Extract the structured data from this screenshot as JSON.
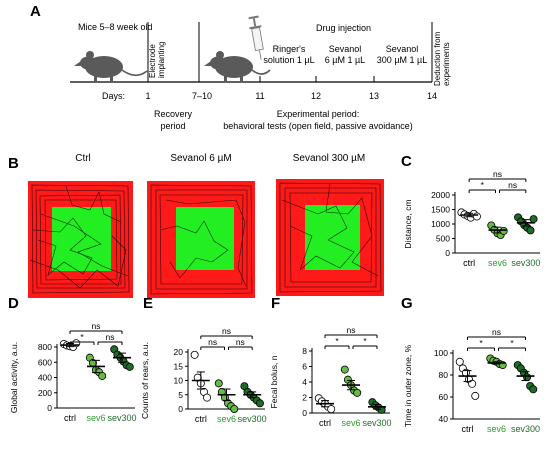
{
  "colors": {
    "ctrl": "#ffffff",
    "sev6": "#66bb44",
    "sev300": "#1f6b2a",
    "sev6_label": "#2e9a2e",
    "sev300_label": "#1f6b2a",
    "arena_outer": "#ff1a1a",
    "arena_inner": "#22ee22"
  },
  "panel_a": {
    "letter": "A",
    "mouse_age": "Mice 5–8 week old",
    "drug_injection": "Drug injection",
    "electrode_line1": "Electrode",
    "electrode_line2": "implanting",
    "deduction_line1": "Deduction from",
    "deduction_line2": "experiments",
    "ringer_line1": "Ringer's",
    "ringer_line2": "solution 1 µL",
    "sev6_line1": "Sevanol",
    "sev6_line2": "6 µM 1 µL",
    "sev300_line1": "Sevanol",
    "sev300_line2": "300 µM 1 µL",
    "days_label": "Days:",
    "days": [
      "1",
      "7–10",
      "11",
      "12",
      "13",
      "14"
    ],
    "recovery_line1": "Recovery",
    "recovery_line2": "period",
    "exp_line1": "Experimental period:",
    "exp_line2": "behavioral tests (open field, passive avoidance)",
    "icons": [
      "mouse-icon",
      "syringe-icon"
    ]
  },
  "panel_b": {
    "letter": "B",
    "titles": [
      "Ctrl",
      "Sevanol 6 µM",
      "Sevanol 300 µM"
    ]
  },
  "chart_data": [
    {
      "panel": "C",
      "type": "scatter",
      "ylabel": "Distance, cm",
      "ylim": [
        0,
        2000
      ],
      "yticks": [
        "0",
        "500",
        "1000",
        "1500",
        "2000"
      ],
      "categories": [
        "ctrl",
        "sev6",
        "sev300"
      ],
      "points": [
        [
          1400,
          1330,
          1280,
          1220,
          1350,
          1260
        ],
        [
          950,
          800,
          680,
          620,
          760
        ],
        [
          1230,
          1090,
          960,
          870,
          780,
          1170
        ]
      ],
      "mean": [
        1310,
        790,
        1040
      ],
      "sem": [
        60,
        100,
        110
      ],
      "comparisons": [
        {
          "from": 0,
          "to": 1,
          "label": "*",
          "level": 1
        },
        {
          "from": 1,
          "to": 2,
          "label": "ns",
          "level": 1
        },
        {
          "from": 0,
          "to": 2,
          "label": "ns",
          "level": 2
        }
      ]
    },
    {
      "panel": "D",
      "type": "scatter",
      "ylabel": "Global activity, a.u.",
      "ylim": [
        0,
        800
      ],
      "yticks": [
        "0",
        "200",
        "400",
        "600",
        "800"
      ],
      "categories": [
        "ctrl",
        "sev6",
        "sev300"
      ],
      "points": [
        [
          840,
          820,
          810,
          800,
          850
        ],
        [
          660,
          590,
          500,
          470,
          420
        ],
        [
          770,
          700,
          660,
          610,
          560,
          540
        ]
      ],
      "mean": [
        825,
        545,
        660
      ],
      "sem": [
        20,
        80,
        60
      ],
      "comparisons": [
        {
          "from": 0,
          "to": 1,
          "label": "*",
          "level": 1
        },
        {
          "from": 1,
          "to": 2,
          "label": "ns",
          "level": 1
        },
        {
          "from": 0,
          "to": 2,
          "label": "ns",
          "level": 2
        }
      ]
    },
    {
      "panel": "E",
      "type": "scatter",
      "ylabel": "Counts of rears, a.u.",
      "ylim": [
        0,
        20
      ],
      "yticks": [
        "0",
        "5",
        "10",
        "15",
        "20"
      ],
      "categories": [
        "ctrl",
        "sev6",
        "sev300"
      ],
      "points": [
        [
          19,
          11,
          9,
          6,
          4
        ],
        [
          9,
          6,
          4,
          2,
          1,
          0
        ],
        [
          8,
          6,
          5,
          4,
          3,
          2
        ]
      ],
      "mean": [
        10,
        5,
        5
      ],
      "sem": [
        3,
        2,
        1
      ],
      "comparisons": [
        {
          "from": 0,
          "to": 1,
          "label": "ns",
          "level": 1
        },
        {
          "from": 1,
          "to": 2,
          "label": "ns",
          "level": 1
        },
        {
          "from": 0,
          "to": 2,
          "label": "ns",
          "level": 2
        }
      ]
    },
    {
      "panel": "F",
      "type": "scatter",
      "ylabel": "Fecal bolus, n",
      "ylim": [
        0,
        8
      ],
      "yticks": [
        "0",
        "2",
        "4",
        "6",
        "8"
      ],
      "categories": [
        "ctrl",
        "sev6",
        "sev300"
      ],
      "points": [
        [
          1.9,
          1.5,
          1.2,
          0.8,
          0.5
        ],
        [
          5.6,
          4.3,
          3.6,
          2.9,
          2.6
        ],
        [
          1.4,
          1.0,
          0.7,
          0.4
        ]
      ],
      "mean": [
        1.2,
        3.6,
        0.8
      ],
      "sem": [
        0.4,
        0.6,
        0.3
      ],
      "comparisons": [
        {
          "from": 0,
          "to": 1,
          "label": "*",
          "level": 1
        },
        {
          "from": 1,
          "to": 2,
          "label": "*",
          "level": 1
        },
        {
          "from": 0,
          "to": 2,
          "label": "ns",
          "level": 2
        }
      ]
    },
    {
      "panel": "G",
      "type": "scatter",
      "ylabel": "Time in outer zone, %",
      "ylim": [
        40,
        100
      ],
      "yticks": [
        "40",
        "60",
        "80",
        "100"
      ],
      "categories": [
        "ctrl",
        "sev6",
        "sev300"
      ],
      "points": [
        [
          92,
          86,
          82,
          76,
          72,
          61
        ],
        [
          95,
          93,
          92,
          90,
          89
        ],
        [
          89,
          86,
          82,
          78,
          70,
          67
        ]
      ],
      "mean": [
        79,
        91,
        79
      ],
      "sem": [
        5,
        1,
        4
      ],
      "comparisons": [
        {
          "from": 0,
          "to": 1,
          "label": "*",
          "level": 1
        },
        {
          "from": 1,
          "to": 2,
          "label": "*",
          "level": 1
        },
        {
          "from": 0,
          "to": 2,
          "label": "ns",
          "level": 2
        }
      ]
    }
  ]
}
